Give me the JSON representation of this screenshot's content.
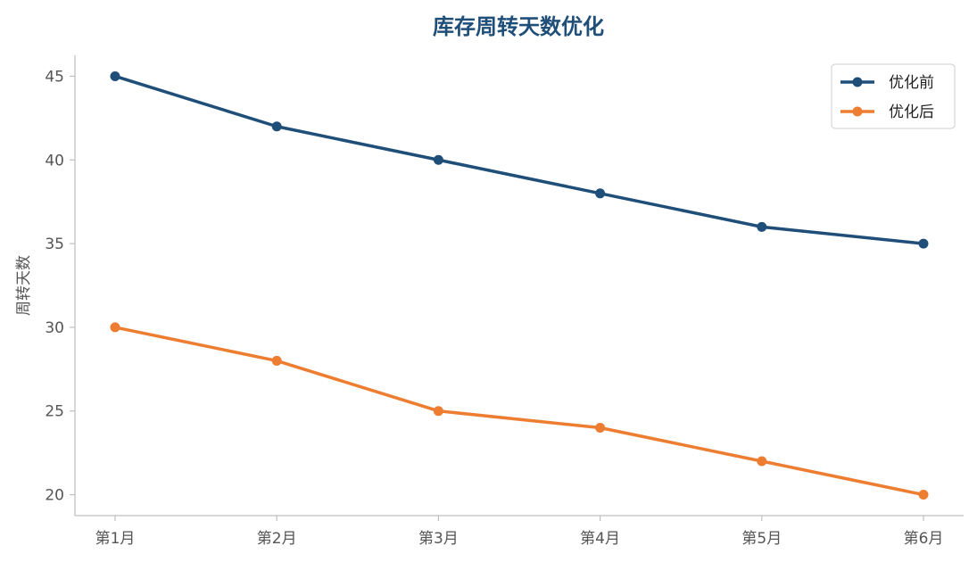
{
  "chart_data": {
    "type": "line",
    "title": "库存周转天数优化",
    "xlabel": "",
    "ylabel": "周转天数",
    "categories": [
      "第1月",
      "第2月",
      "第3月",
      "第4月",
      "第5月",
      "第6月"
    ],
    "series": [
      {
        "name": "优化前",
        "color": "#1f4e79",
        "values": [
          45,
          42,
          40,
          38,
          36,
          35
        ]
      },
      {
        "name": "优化后",
        "color": "#ed7d31",
        "values": [
          30,
          28,
          25,
          24,
          22,
          20
        ]
      }
    ],
    "ylim": [
      18.75,
      46.25
    ],
    "yticks": [
      20,
      25,
      30,
      35,
      40,
      45
    ],
    "grid": false,
    "legend_position": "top-right"
  }
}
